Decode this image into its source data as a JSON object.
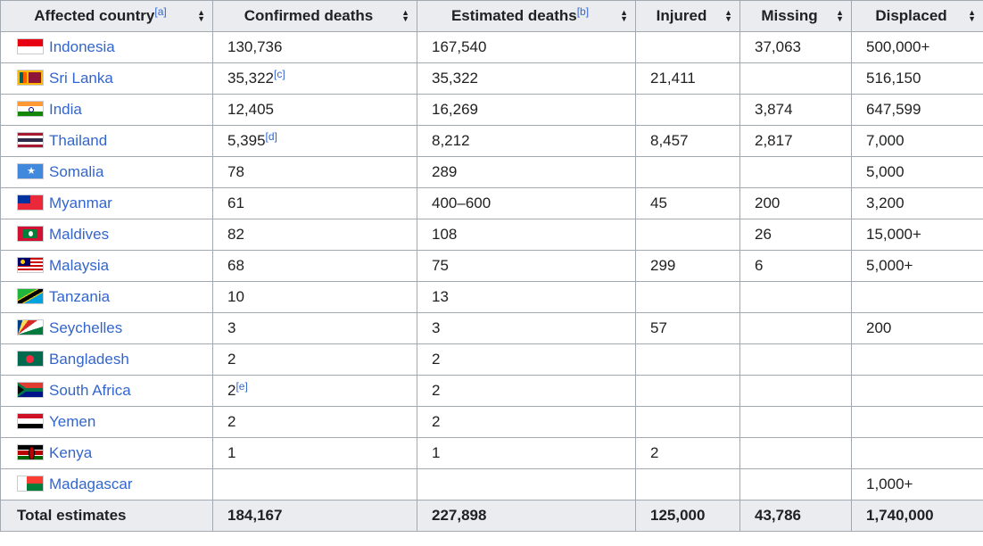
{
  "headers": [
    {
      "label": "Affected country",
      "note": "[a]"
    },
    {
      "label": "Confirmed deaths",
      "note": ""
    },
    {
      "label": "Estimated deaths",
      "note": "[b]"
    },
    {
      "label": "Injured",
      "note": ""
    },
    {
      "label": "Missing",
      "note": ""
    },
    {
      "label": "Displaced",
      "note": ""
    }
  ],
  "rows": [
    {
      "country": "Indonesia",
      "flag": "indonesia-flag-icon",
      "confirmed": "130,736",
      "confirmed_note": "",
      "estimated": "167,540",
      "injured": "",
      "missing": "37,063",
      "displaced": "500,000+"
    },
    {
      "country": "Sri Lanka",
      "flag": "sri-lanka-flag-icon",
      "confirmed": "35,322",
      "confirmed_note": "[c]",
      "estimated": "35,322",
      "injured": "21,411",
      "missing": "",
      "displaced": "516,150"
    },
    {
      "country": "India",
      "flag": "india-flag-icon",
      "confirmed": "12,405",
      "confirmed_note": "",
      "estimated": "16,269",
      "injured": "",
      "missing": "3,874",
      "displaced": "647,599"
    },
    {
      "country": "Thailand",
      "flag": "thailand-flag-icon",
      "confirmed": "5,395",
      "confirmed_note": "[d]",
      "estimated": "8,212",
      "injured": "8,457",
      "missing": "2,817",
      "displaced": "7,000"
    },
    {
      "country": "Somalia",
      "flag": "somalia-flag-icon",
      "confirmed": "78",
      "confirmed_note": "",
      "estimated": "289",
      "injured": "",
      "missing": "",
      "displaced": "5,000"
    },
    {
      "country": "Myanmar",
      "flag": "myanmar-flag-icon",
      "confirmed": "61",
      "confirmed_note": "",
      "estimated": "400–600",
      "injured": "45",
      "missing": "200",
      "displaced": "3,200"
    },
    {
      "country": "Maldives",
      "flag": "maldives-flag-icon",
      "confirmed": "82",
      "confirmed_note": "",
      "estimated": "108",
      "injured": "",
      "missing": "26",
      "displaced": "15,000+"
    },
    {
      "country": "Malaysia",
      "flag": "malaysia-flag-icon",
      "confirmed": "68",
      "confirmed_note": "",
      "estimated": "75",
      "injured": "299",
      "missing": "6",
      "displaced": "5,000+"
    },
    {
      "country": "Tanzania",
      "flag": "tanzania-flag-icon",
      "confirmed": "10",
      "confirmed_note": "",
      "estimated": "13",
      "injured": "",
      "missing": "",
      "displaced": ""
    },
    {
      "country": "Seychelles",
      "flag": "seychelles-flag-icon",
      "confirmed": "3",
      "confirmed_note": "",
      "estimated": "3",
      "injured": "57",
      "missing": "",
      "displaced": "200"
    },
    {
      "country": "Bangladesh",
      "flag": "bangladesh-flag-icon",
      "confirmed": "2",
      "confirmed_note": "",
      "estimated": "2",
      "injured": "",
      "missing": "",
      "displaced": ""
    },
    {
      "country": "South Africa",
      "flag": "south-africa-flag-icon",
      "confirmed": "2",
      "confirmed_note": "[e]",
      "estimated": "2",
      "injured": "",
      "missing": "",
      "displaced": ""
    },
    {
      "country": "Yemen",
      "flag": "yemen-flag-icon",
      "confirmed": "2",
      "confirmed_note": "",
      "estimated": "2",
      "injured": "",
      "missing": "",
      "displaced": ""
    },
    {
      "country": "Kenya",
      "flag": "kenya-flag-icon",
      "confirmed": "1",
      "confirmed_note": "",
      "estimated": "1",
      "injured": "2",
      "missing": "",
      "displaced": ""
    },
    {
      "country": "Madagascar",
      "flag": "madagascar-flag-icon",
      "confirmed": "",
      "confirmed_note": "",
      "estimated": "",
      "injured": "",
      "missing": "",
      "displaced": "1,000+"
    }
  ],
  "total": {
    "label": "Total estimates",
    "confirmed": "184,167",
    "estimated": "227,898",
    "injured": "125,000",
    "missing": "43,786",
    "displaced": "1,740,000"
  },
  "colors": {
    "link": "#3366cc",
    "header_bg": "#eaecf0",
    "border": "#a2a9b1"
  }
}
